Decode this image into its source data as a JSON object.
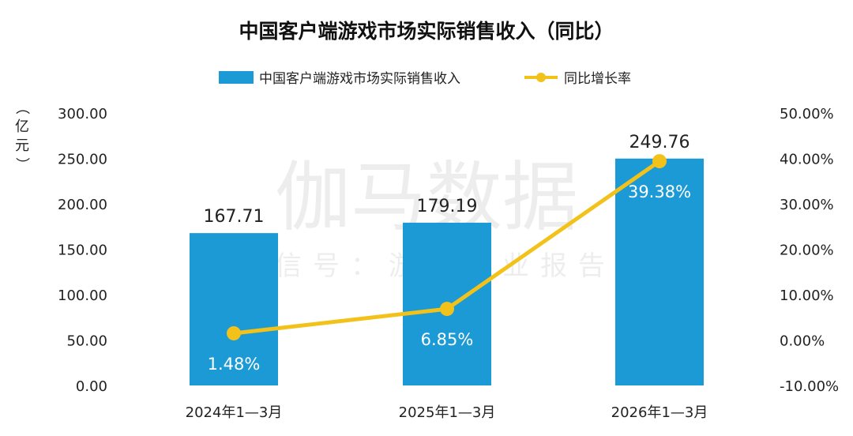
{
  "chart_data": {
    "type": "bar",
    "title": "中国客户端游戏市场实际销售收入（同比）",
    "categories": [
      "2024年1—3月",
      "2025年1—3月",
      "2026年1—3月"
    ],
    "series": [
      {
        "name": "中国客户端游戏市场实际销售收入",
        "type": "bar",
        "axis": "left",
        "values": [
          167.71,
          179.19,
          249.76
        ],
        "labels": [
          "167.71",
          "179.19",
          "249.76"
        ],
        "color": "#1B9AD6"
      },
      {
        "name": "同比增长率",
        "type": "line",
        "axis": "right",
        "values": [
          1.48,
          6.85,
          39.38
        ],
        "labels": [
          "1.48%",
          "6.85%",
          "39.38%"
        ],
        "color": "#F2C21B"
      }
    ],
    "y_left": {
      "label": "（亿元）",
      "min": 0,
      "max": 300,
      "ticks": [
        "0.00",
        "50.00",
        "100.00",
        "150.00",
        "200.00",
        "250.00",
        "300.00"
      ]
    },
    "y_right": {
      "min": -10,
      "max": 50,
      "ticks": [
        "-10.00%",
        "0.00%",
        "10.00%",
        "20.00%",
        "30.00%",
        "40.00%",
        "50.00%"
      ]
    },
    "grid": false,
    "legend_position": "top"
  },
  "watermark": {
    "main": "伽马数据",
    "sub": "微信号：游戏产业报告"
  }
}
